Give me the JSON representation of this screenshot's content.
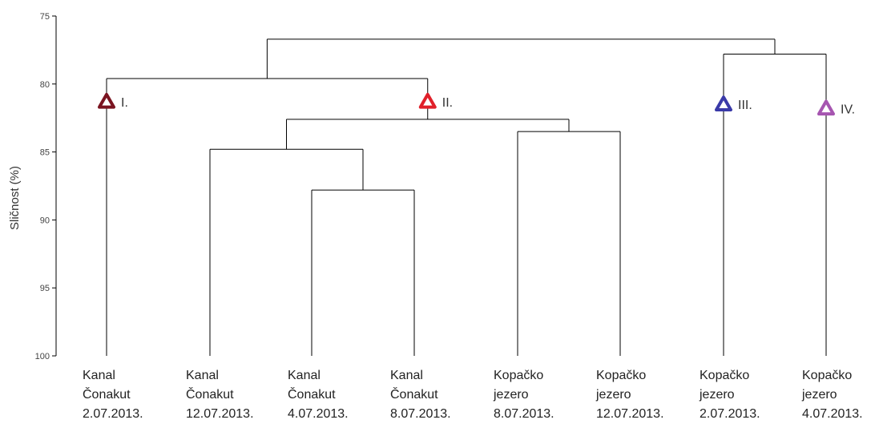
{
  "chart_data": {
    "type": "dendrogram",
    "ylabel": "Sličnost (%)",
    "ylim": [
      75,
      100
    ],
    "y_ticks": [
      "75",
      "80",
      "85",
      "90",
      "95",
      "100"
    ],
    "y_axis_reversed": true,
    "leaves": [
      {
        "lines": [
          "Kanal",
          "Čonakut",
          "2.07.2013."
        ]
      },
      {
        "lines": [
          "Kanal",
          "Čonakut",
          "12.07.2013."
        ]
      },
      {
        "lines": [
          "Kanal",
          "Čonakut",
          "4.07.2013."
        ]
      },
      {
        "lines": [
          "Kanal",
          "Čonakut",
          "8.07.2013."
        ]
      },
      {
        "lines": [
          "Kopačko",
          "jezero",
          "8.07.2013."
        ]
      },
      {
        "lines": [
          "Kopačko",
          "jezero",
          "12.07.2013."
        ]
      },
      {
        "lines": [
          "Kopačko",
          "jezero",
          "2.07.2013."
        ]
      },
      {
        "lines": [
          "Kopačko",
          "jezero",
          "4.07.2013."
        ]
      }
    ],
    "merges": [
      {
        "left": "L2",
        "right": "L3",
        "similarity": 87.8
      },
      {
        "left": "L1",
        "right": "M0",
        "similarity": 84.8
      },
      {
        "left": "L4",
        "right": "L5",
        "similarity": 83.5
      },
      {
        "left": "M1",
        "right": "M2",
        "similarity": 82.6
      },
      {
        "left": "L0",
        "right": "M3",
        "similarity": 79.6
      },
      {
        "left": "L6",
        "right": "L7",
        "similarity": 77.8
      },
      {
        "left": "M4",
        "right": "M5",
        "similarity": 76.7
      }
    ],
    "clusters": [
      {
        "label": "I.",
        "node": "L0",
        "similarity": 81.3,
        "color": "#7a1420"
      },
      {
        "label": "II.",
        "node": "M3",
        "similarity": 81.3,
        "color": "#e0202a"
      },
      {
        "label": "III.",
        "node": "L6",
        "similarity": 81.5,
        "color": "#3a3aa8"
      },
      {
        "label": "IV.",
        "node": "L7",
        "similarity": 81.8,
        "color": "#a655b0"
      }
    ],
    "line_color": "#000000",
    "grid": false
  }
}
